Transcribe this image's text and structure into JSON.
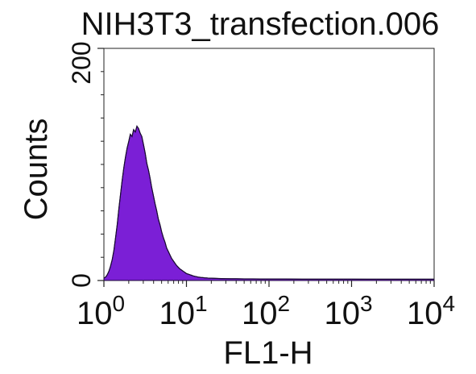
{
  "chart_data": {
    "type": "area",
    "title": "NIH3T3_transfection.006",
    "xlabel": "FL1-H",
    "ylabel": "Counts",
    "x_scale": "log",
    "xlim": [
      1,
      10000
    ],
    "ylim": [
      0,
      200
    ],
    "x_ticks": [
      {
        "base": "10",
        "exp": "0",
        "value": 1
      },
      {
        "base": "10",
        "exp": "1",
        "value": 10
      },
      {
        "base": "10",
        "exp": "2",
        "value": 100
      },
      {
        "base": "10",
        "exp": "3",
        "value": 1000
      },
      {
        "base": "10",
        "exp": "4",
        "value": 10000
      }
    ],
    "y_ticks": [
      {
        "label": "0",
        "value": 0
      },
      {
        "label": "200",
        "value": 200
      }
    ],
    "fill_color": "#7b1fd6",
    "edge_color": "#1a0a33",
    "series": [
      {
        "x": [
          1.0,
          1.05,
          1.1,
          1.15,
          1.2,
          1.26,
          1.32,
          1.38,
          1.45,
          1.52,
          1.59,
          1.66,
          1.74,
          1.82,
          1.91,
          2.0,
          2.09,
          2.19,
          2.29,
          2.4,
          2.51,
          2.63,
          2.75,
          2.88,
          3.02,
          3.16,
          3.31,
          3.47,
          3.63,
          3.8,
          3.98,
          4.17,
          4.37,
          4.57,
          4.79,
          5.01,
          5.25,
          5.5,
          5.75,
          6.03,
          6.31,
          6.61,
          6.92,
          7.24,
          7.59,
          7.94,
          8.32,
          8.71,
          9.12,
          9.55,
          10.0,
          10.5,
          11.0,
          11.5,
          12.0,
          12.6,
          13.2,
          13.8,
          14.5,
          15.1,
          15.8,
          16.6,
          17.4,
          18.2,
          19.1,
          20.0,
          22.9,
          26.3,
          30.2,
          34.7,
          39.8,
          50.1,
          63.1,
          79.4,
          100,
          158,
          251,
          398,
          631,
          1000,
          1585,
          2512,
          3981,
          6310,
          10000
        ],
        "y": [
          2,
          3,
          5,
          8,
          12,
          18,
          26,
          36,
          48,
          62,
          74,
          86,
          97,
          106,
          114,
          120,
          126,
          124,
          130,
          128,
          133,
          131,
          127,
          124,
          117,
          110,
          101,
          95,
          88,
          80,
          73,
          66,
          60,
          53,
          48,
          42,
          37,
          33,
          28,
          25,
          22,
          19,
          17,
          15,
          13,
          11.5,
          10,
          9,
          8,
          7,
          6,
          5.5,
          5,
          4.5,
          4,
          3.6,
          3.3,
          3,
          2.8,
          2.6,
          2.5,
          2.3,
          2.2,
          2.1,
          2,
          2,
          1.8,
          1.7,
          1.6,
          1.5,
          1.5,
          1.4,
          1.4,
          1.3,
          1.3,
          1.3,
          1.2,
          1.2,
          1.2,
          1.2,
          1.1,
          1.1,
          1.1,
          1.1,
          1.1
        ]
      }
    ]
  }
}
